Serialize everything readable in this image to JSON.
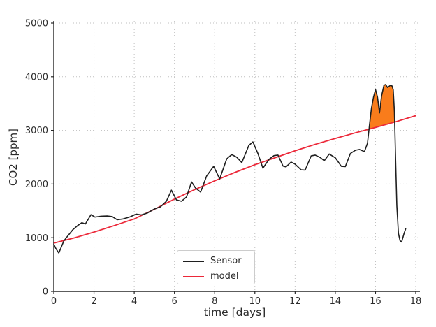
{
  "figure": {
    "background": "#ffffff"
  },
  "chart_data": {
    "type": "line",
    "title": "",
    "xlabel": "time [days]",
    "ylabel": "CO2 [ppm]",
    "xlim": [
      0,
      18
    ],
    "ylim": [
      0,
      5000
    ],
    "x_ticks": [
      0,
      2,
      4,
      6,
      8,
      10,
      12,
      14,
      16,
      18
    ],
    "y_ticks": [
      0,
      1000,
      2000,
      3000,
      4000,
      5000
    ],
    "grid": "dotted",
    "colors": {
      "grid": "#bfbfbf",
      "axis": "#262626",
      "text": "#2b2b2b",
      "fill": "#f97c1b"
    },
    "legend": {
      "position": "lower-center",
      "entries": [
        {
          "label": "Sensor",
          "color": "#1f1f1f"
        },
        {
          "label": "model",
          "color": "#ec2839"
        }
      ]
    },
    "series": [
      {
        "name": "Sensor",
        "color": "#1f1f1f",
        "width": 1.6,
        "points": [
          [
            0,
            880
          ],
          [
            0.1,
            800
          ],
          [
            0.25,
            715
          ],
          [
            0.5,
            940
          ],
          [
            0.72,
            1045
          ],
          [
            0.95,
            1150
          ],
          [
            1.2,
            1230
          ],
          [
            1.4,
            1280
          ],
          [
            1.57,
            1255
          ],
          [
            1.85,
            1430
          ],
          [
            2.05,
            1385
          ],
          [
            2.35,
            1400
          ],
          [
            2.65,
            1405
          ],
          [
            2.9,
            1395
          ],
          [
            3.15,
            1335
          ],
          [
            3.45,
            1350
          ],
          [
            3.8,
            1390
          ],
          [
            4.1,
            1440
          ],
          [
            4.35,
            1425
          ],
          [
            4.65,
            1460
          ],
          [
            5,
            1535
          ],
          [
            5.3,
            1575
          ],
          [
            5.6,
            1680
          ],
          [
            5.85,
            1885
          ],
          [
            6.1,
            1705
          ],
          [
            6.35,
            1680
          ],
          [
            6.6,
            1760
          ],
          [
            6.85,
            2040
          ],
          [
            7.05,
            1925
          ],
          [
            7.3,
            1850
          ],
          [
            7.6,
            2150
          ],
          [
            7.95,
            2330
          ],
          [
            8.25,
            2095
          ],
          [
            8.6,
            2470
          ],
          [
            8.85,
            2550
          ],
          [
            9.1,
            2500
          ],
          [
            9.35,
            2400
          ],
          [
            9.7,
            2720
          ],
          [
            9.9,
            2785
          ],
          [
            10.15,
            2570
          ],
          [
            10.4,
            2295
          ],
          [
            10.7,
            2460
          ],
          [
            10.95,
            2530
          ],
          [
            11.15,
            2540
          ],
          [
            11.4,
            2335
          ],
          [
            11.55,
            2320
          ],
          [
            11.8,
            2410
          ],
          [
            12,
            2370
          ],
          [
            12.3,
            2265
          ],
          [
            12.5,
            2260
          ],
          [
            12.8,
            2525
          ],
          [
            13,
            2540
          ],
          [
            13.25,
            2495
          ],
          [
            13.45,
            2435
          ],
          [
            13.7,
            2560
          ],
          [
            14,
            2490
          ],
          [
            14.3,
            2330
          ],
          [
            14.5,
            2325
          ],
          [
            14.75,
            2570
          ],
          [
            15,
            2630
          ],
          [
            15.2,
            2645
          ],
          [
            15.45,
            2605
          ],
          [
            15.6,
            2760
          ],
          [
            15.7,
            3100
          ],
          [
            15.8,
            3420
          ],
          [
            15.9,
            3620
          ],
          [
            16,
            3760
          ],
          [
            16.1,
            3620
          ],
          [
            16.2,
            3325
          ],
          [
            16.3,
            3640
          ],
          [
            16.42,
            3840
          ],
          [
            16.5,
            3855
          ],
          [
            16.6,
            3800
          ],
          [
            16.74,
            3840
          ],
          [
            16.82,
            3830
          ],
          [
            16.88,
            3760
          ],
          [
            16.94,
            3350
          ],
          [
            17,
            2450
          ],
          [
            17.06,
            1600
          ],
          [
            17.14,
            1080
          ],
          [
            17.22,
            945
          ],
          [
            17.3,
            920
          ],
          [
            17.42,
            1080
          ],
          [
            17.5,
            1165
          ]
        ]
      },
      {
        "name": "model",
        "color": "#ec2839",
        "width": 1.8,
        "points": [
          [
            0,
            900
          ],
          [
            1,
            995
          ],
          [
            2,
            1105
          ],
          [
            3,
            1225
          ],
          [
            4,
            1350
          ],
          [
            5,
            1530
          ],
          [
            6,
            1720
          ],
          [
            7,
            1895
          ],
          [
            8,
            2060
          ],
          [
            9,
            2215
          ],
          [
            10,
            2360
          ],
          [
            11,
            2490
          ],
          [
            12,
            2620
          ],
          [
            13,
            2740
          ],
          [
            14,
            2850
          ],
          [
            15,
            2955
          ],
          [
            16,
            3055
          ],
          [
            17,
            3160
          ],
          [
            18,
            3275
          ]
        ]
      }
    ],
    "fill_between": {
      "above_series": "Sensor",
      "below_series": "model",
      "x_start": 15.0,
      "x_end": 17.06,
      "color": "#f97c1b"
    }
  }
}
